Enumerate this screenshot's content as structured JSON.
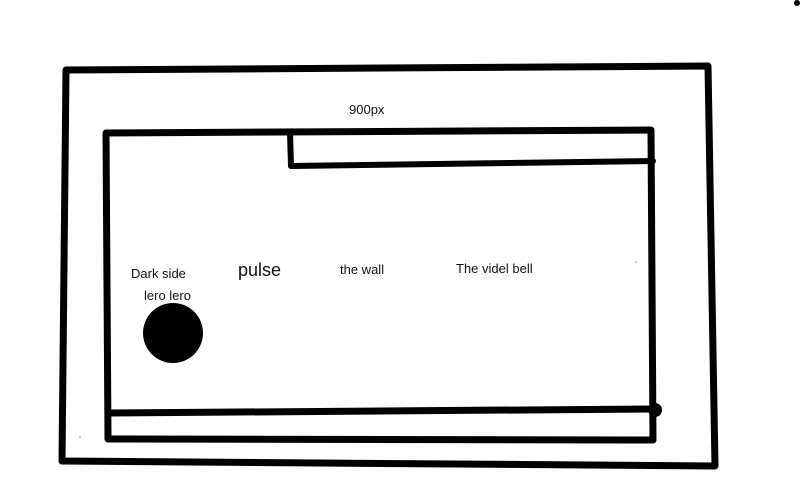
{
  "sketch": {
    "width_label": "900px",
    "labels": {
      "dark_side": "Dark side",
      "lero": "lero lero",
      "pulse": "pulse",
      "the_wall": "the wall",
      "videl_bell": "The videl bell"
    }
  },
  "colors": {
    "ink": "#000000",
    "background": "#ffffff"
  }
}
